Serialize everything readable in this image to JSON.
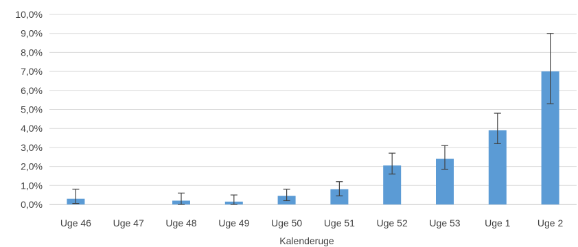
{
  "chart_data": {
    "type": "bar",
    "title": "",
    "xlabel": "Kalenderuge",
    "ylabel": "",
    "categories": [
      "Uge 46",
      "Uge 47",
      "Uge 48",
      "Uge 49",
      "Uge 50",
      "Uge 51",
      "Uge 52",
      "Uge 53",
      "Uge 1",
      "Uge 2"
    ],
    "values": [
      0.3,
      0.0,
      0.2,
      0.15,
      0.45,
      0.8,
      2.05,
      2.4,
      3.9,
      7.0
    ],
    "error_low": [
      0.05,
      null,
      0.0,
      0.0,
      0.2,
      0.45,
      1.6,
      1.85,
      3.2,
      5.3
    ],
    "error_high": [
      0.8,
      null,
      0.6,
      0.5,
      0.8,
      1.2,
      2.7,
      3.1,
      4.8,
      9.0
    ],
    "ylim": [
      0,
      10
    ],
    "yticks": [
      0,
      1,
      2,
      3,
      4,
      5,
      6,
      7,
      8,
      9,
      10
    ],
    "ytick_labels": [
      "0,0%",
      "1,0%",
      "2,0%",
      "3,0%",
      "4,0%",
      "5,0%",
      "6,0%",
      "7,0%",
      "8,0%",
      "9,0%",
      "10,0%"
    ],
    "grid": true,
    "legend": "none",
    "colors": {
      "bar": "#5b9bd5",
      "grid": "#d9d9d9",
      "error": "#404040",
      "axis": "#bfbfbf"
    }
  }
}
